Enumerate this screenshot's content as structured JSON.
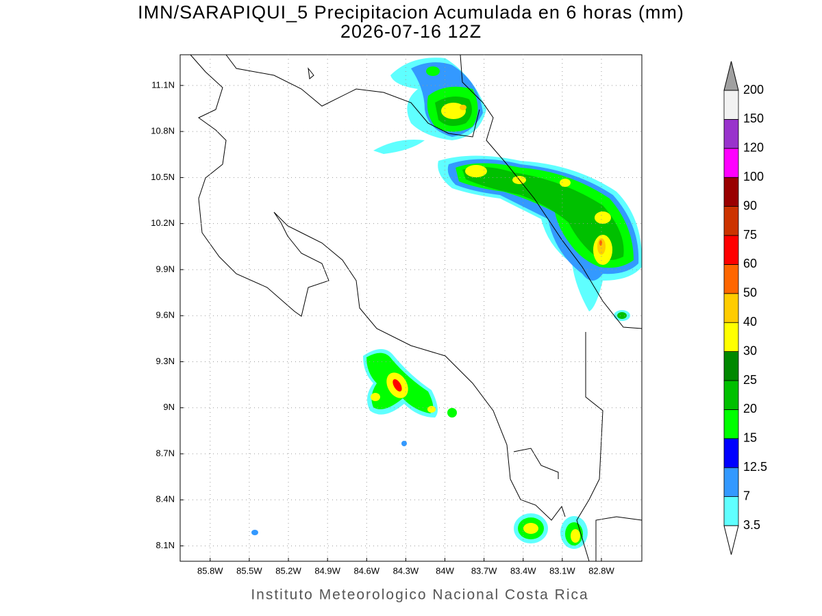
{
  "title": "IMN/SARAPIQUI_5 Precipitacion Acumulada en 6 horas (mm)",
  "subtitle": "2026-07-16 12Z",
  "footer": "Instituto Meteorologico Nacional Costa Rica",
  "map": {
    "lonlim": [
      -86.03,
      -82.49
    ],
    "latlim": [
      8.0,
      11.3
    ],
    "grid": true,
    "lon_ticks": [
      {
        "value": -85.8,
        "label": "85.8W"
      },
      {
        "value": -85.5,
        "label": "85.5W"
      },
      {
        "value": -85.2,
        "label": "85.2W"
      },
      {
        "value": -84.9,
        "label": "84.9W"
      },
      {
        "value": -84.6,
        "label": "84.6W"
      },
      {
        "value": -84.3,
        "label": "84.3W"
      },
      {
        "value": -84.0,
        "label": "84W"
      },
      {
        "value": -83.7,
        "label": "83.7W"
      },
      {
        "value": -83.4,
        "label": "83.4W"
      },
      {
        "value": -83.1,
        "label": "83.1W"
      },
      {
        "value": -82.8,
        "label": "82.8W"
      }
    ],
    "lat_ticks": [
      {
        "value": 11.1,
        "label": "11.1N"
      },
      {
        "value": 10.8,
        "label": "10.8N"
      },
      {
        "value": 10.5,
        "label": "10.5N"
      },
      {
        "value": 10.2,
        "label": "10.2N"
      },
      {
        "value": 9.9,
        "label": "9.9N"
      },
      {
        "value": 9.6,
        "label": "9.6N"
      },
      {
        "value": 9.3,
        "label": "9.3N"
      },
      {
        "value": 9.0,
        "label": "9N"
      },
      {
        "value": 8.7,
        "label": "8.7N"
      },
      {
        "value": 8.4,
        "label": "8.4N"
      },
      {
        "value": 8.1,
        "label": "8.1N"
      }
    ]
  },
  "colorbar": {
    "levels": [
      3.5,
      7,
      12.5,
      15,
      20,
      25,
      30,
      40,
      50,
      60,
      75,
      90,
      100,
      120,
      150,
      200
    ],
    "colors": [
      "#5fffff",
      "#3399ff",
      "#0000ff",
      "#00ff00",
      "#00c000",
      "#008800",
      "#ffff00",
      "#ffcc00",
      "#ff6600",
      "#ff0000",
      "#cc3300",
      "#990000",
      "#ff00ff",
      "#9933cc",
      "#f2f2f2"
    ],
    "under_color": "#ffffff",
    "over_color": "#a0a0a0"
  }
}
